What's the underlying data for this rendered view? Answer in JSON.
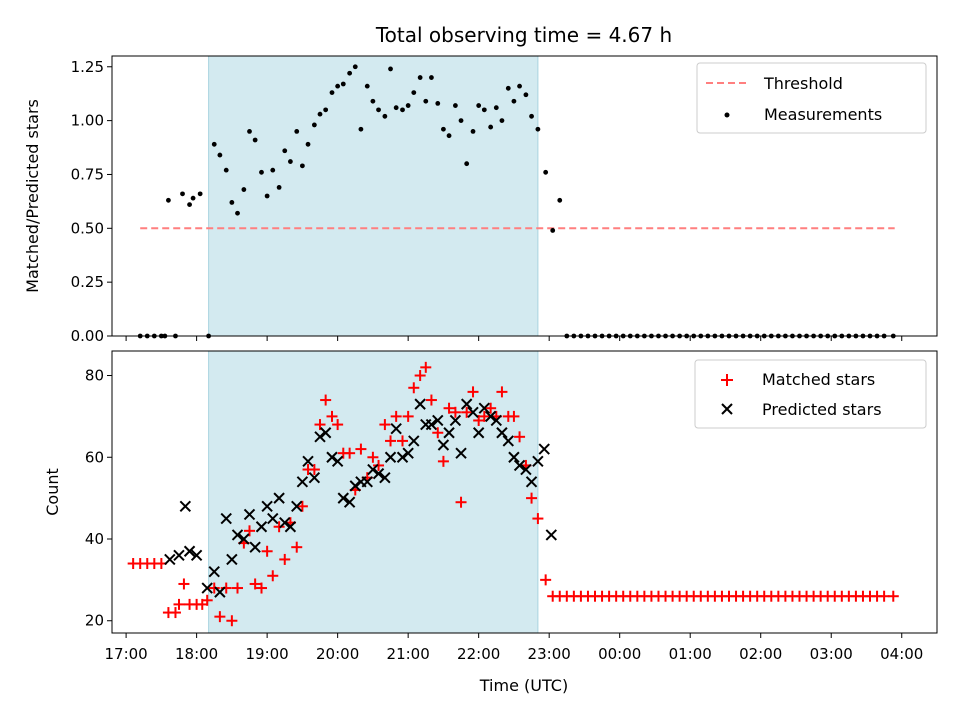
{
  "chart_data": [
    {
      "type": "scatter",
      "title": "Total observing time = 4.67 h",
      "xlabel": "",
      "ylabel": "Matched/Predicted stars",
      "x_unit": "hours since 17:00 UTC (axis shows clock time)",
      "xlim": [
        16.8,
        28.5
      ],
      "ylim": [
        0.0,
        1.3
      ],
      "yticks": [
        0.0,
        0.25,
        0.5,
        0.75,
        1.0,
        1.25
      ],
      "yticklabels": [
        "0.00",
        "0.25",
        "0.50",
        "0.75",
        "1.00",
        "1.25"
      ],
      "shaded_span": [
        18.17,
        22.84
      ],
      "shaded_color": "#d3eaf0",
      "legend": {
        "placement": "upper-right",
        "entries": [
          "Threshold",
          "Measurements"
        ]
      },
      "series": [
        {
          "name": "Threshold",
          "style": "dashed-line",
          "color": "#ff7f7f",
          "x": [
            17.2,
            27.9
          ],
          "y": [
            0.5,
            0.5
          ]
        },
        {
          "name": "Measurements",
          "style": "dot",
          "color": "#000000",
          "x": [
            17.2,
            17.3,
            17.4,
            17.5,
            17.55,
            17.6,
            17.7,
            17.8,
            17.9,
            17.95,
            18.05,
            18.17,
            18.25,
            18.33,
            18.42,
            18.5,
            18.58,
            18.67,
            18.75,
            18.83,
            18.92,
            19.0,
            19.08,
            19.17,
            19.25,
            19.33,
            19.42,
            19.5,
            19.58,
            19.67,
            19.75,
            19.83,
            19.92,
            20.0,
            20.08,
            20.17,
            20.25,
            20.33,
            20.42,
            20.5,
            20.58,
            20.67,
            20.75,
            20.83,
            20.92,
            21.0,
            21.08,
            21.17,
            21.25,
            21.33,
            21.42,
            21.5,
            21.58,
            21.67,
            21.75,
            21.83,
            21.92,
            22.0,
            22.08,
            22.17,
            22.25,
            22.33,
            22.42,
            22.5,
            22.58,
            22.67,
            22.75,
            22.84,
            22.95,
            23.05,
            23.15,
            23.25,
            23.35,
            23.45,
            23.55,
            23.65,
            23.75,
            23.85,
            23.95,
            24.05,
            24.15,
            24.25,
            24.35,
            24.45,
            24.55,
            24.65,
            24.75,
            24.85,
            24.95,
            25.05,
            25.15,
            25.25,
            25.35,
            25.45,
            25.55,
            25.65,
            25.75,
            25.85,
            25.95,
            26.05,
            26.15,
            26.25,
            26.35,
            26.45,
            26.55,
            26.65,
            26.75,
            26.85,
            26.95,
            27.05,
            27.15,
            27.25,
            27.35,
            27.45,
            27.55,
            27.65,
            27.75,
            27.88
          ],
          "y": [
            0.0,
            0.0,
            0.0,
            0.0,
            0.0,
            0.63,
            0.0,
            0.66,
            0.61,
            0.64,
            0.66,
            0.0,
            0.89,
            0.84,
            0.77,
            0.62,
            0.57,
            0.68,
            0.95,
            0.91,
            0.76,
            0.65,
            0.77,
            0.69,
            0.86,
            0.81,
            0.95,
            0.79,
            0.89,
            0.98,
            1.03,
            1.05,
            1.13,
            1.16,
            1.17,
            1.22,
            1.25,
            0.96,
            1.16,
            1.09,
            1.05,
            1.02,
            1.24,
            1.06,
            1.05,
            1.07,
            1.13,
            1.2,
            1.09,
            1.2,
            1.08,
            0.96,
            0.93,
            1.07,
            1.0,
            0.8,
            0.95,
            1.07,
            1.05,
            0.97,
            1.06,
            1.0,
            1.15,
            1.09,
            1.16,
            1.12,
            1.02,
            0.96,
            0.76,
            0.49,
            0.63,
            0.0,
            0.0,
            0.0,
            0.0,
            0.0,
            0.0,
            0.0,
            0.0,
            0.0,
            0.0,
            0.0,
            0.0,
            0.0,
            0.0,
            0.0,
            0.0,
            0.0,
            0.0,
            0.0,
            0.0,
            0.0,
            0.0,
            0.0,
            0.0,
            0.0,
            0.0,
            0.0,
            0.0,
            0.0,
            0.0,
            0.0,
            0.0,
            0.0,
            0.0,
            0.0,
            0.0,
            0.0,
            0.0,
            0.0,
            0.0,
            0.0,
            0.0,
            0.0,
            0.0,
            0.0,
            0.0,
            0.0
          ]
        }
      ]
    },
    {
      "type": "scatter",
      "title": "",
      "xlabel": "Time (UTC)",
      "ylabel": "Count",
      "x_unit": "hours since 17:00 UTC (axis shows clock time)",
      "xlim": [
        16.8,
        28.5
      ],
      "ylim": [
        17,
        86
      ],
      "xticks": [
        17,
        18,
        19,
        20,
        21,
        22,
        23,
        24,
        25,
        26,
        27,
        28
      ],
      "xticklabels": [
        "17:00",
        "18:00",
        "19:00",
        "20:00",
        "21:00",
        "22:00",
        "23:00",
        "00:00",
        "01:00",
        "02:00",
        "03:00",
        "04:00"
      ],
      "yticks": [
        20,
        40,
        60,
        80
      ],
      "yticklabels": [
        "20",
        "40",
        "60",
        "80"
      ],
      "shaded_span": [
        18.17,
        22.84
      ],
      "shaded_color": "#d3eaf0",
      "legend": {
        "placement": "upper-right",
        "entries": [
          "Matched stars",
          "Predicted stars"
        ]
      },
      "series": [
        {
          "name": "Matched stars",
          "style": "plus",
          "color": "#ff0000",
          "x": [
            17.1,
            17.2,
            17.3,
            17.4,
            17.5,
            17.6,
            17.7,
            17.75,
            17.82,
            17.9,
            18.0,
            18.08,
            18.15,
            18.25,
            18.33,
            18.42,
            18.5,
            18.58,
            18.67,
            18.75,
            18.83,
            18.92,
            19.0,
            19.08,
            19.17,
            19.25,
            19.33,
            19.42,
            19.5,
            19.58,
            19.67,
            19.75,
            19.83,
            19.92,
            20.0,
            20.08,
            20.17,
            20.25,
            20.33,
            20.42,
            20.5,
            20.58,
            20.67,
            20.75,
            20.83,
            20.92,
            21.0,
            21.08,
            21.17,
            21.25,
            21.33,
            21.42,
            21.5,
            21.58,
            21.67,
            21.75,
            21.83,
            21.92,
            22.0,
            22.08,
            22.17,
            22.25,
            22.33,
            22.42,
            22.5,
            22.58,
            22.67,
            22.75,
            22.84,
            22.95,
            23.05,
            23.15,
            23.25,
            23.35,
            23.45,
            23.55,
            23.65,
            23.75,
            23.85,
            23.95,
            24.05,
            24.15,
            24.25,
            24.35,
            24.45,
            24.55,
            24.65,
            24.75,
            24.85,
            24.95,
            25.05,
            25.15,
            25.25,
            25.35,
            25.45,
            25.55,
            25.65,
            25.75,
            25.85,
            25.95,
            26.05,
            26.15,
            26.25,
            26.35,
            26.45,
            26.55,
            26.65,
            26.75,
            26.85,
            26.95,
            27.05,
            27.15,
            27.25,
            27.35,
            27.45,
            27.55,
            27.65,
            27.75,
            27.88
          ],
          "y": [
            34,
            34,
            34,
            34,
            34,
            22,
            22,
            24,
            29,
            24,
            24,
            24,
            25,
            28,
            21,
            28,
            20,
            28,
            39,
            42,
            29,
            28,
            37,
            31,
            43,
            35,
            44,
            38,
            48,
            57,
            57,
            68,
            74,
            70,
            68,
            61,
            61,
            52,
            62,
            55,
            60,
            58,
            68,
            64,
            70,
            64,
            70,
            77,
            80,
            82,
            74,
            66,
            59,
            72,
            71,
            49,
            71,
            76,
            69,
            70,
            72,
            70,
            76,
            70,
            70,
            65,
            58,
            50,
            45,
            30,
            26,
            26,
            26,
            26,
            26,
            26,
            26,
            26,
            26,
            26,
            26,
            26,
            26,
            26,
            26,
            26,
            26,
            26,
            26,
            26,
            26,
            26,
            26,
            26,
            26,
            26,
            26,
            26,
            26,
            26,
            26,
            26,
            26,
            26,
            26,
            26,
            26,
            26,
            26,
            26,
            26,
            26,
            26,
            26,
            26,
            26,
            26,
            26,
            26
          ]
        },
        {
          "name": "Predicted stars",
          "style": "x",
          "color": "#000000",
          "x": [
            17.62,
            17.75,
            17.84,
            17.9,
            18.0,
            18.15,
            18.25,
            18.33,
            18.42,
            18.5,
            18.58,
            18.67,
            18.75,
            18.83,
            18.92,
            19.0,
            19.08,
            19.17,
            19.25,
            19.33,
            19.42,
            19.5,
            19.58,
            19.67,
            19.75,
            19.83,
            19.92,
            20.0,
            20.08,
            20.17,
            20.25,
            20.33,
            20.42,
            20.5,
            20.58,
            20.67,
            20.75,
            20.83,
            20.92,
            21.0,
            21.08,
            21.17,
            21.25,
            21.33,
            21.42,
            21.5,
            21.58,
            21.67,
            21.75,
            21.83,
            21.92,
            22.0,
            22.08,
            22.17,
            22.25,
            22.33,
            22.42,
            22.5,
            22.58,
            22.67,
            22.75,
            22.84,
            22.93,
            23.03
          ],
          "y": [
            35,
            36,
            48,
            37,
            36,
            28,
            32,
            27,
            45,
            35,
            41,
            40,
            46,
            38,
            43,
            48,
            45,
            50,
            44,
            43,
            48,
            54,
            59,
            55,
            65,
            66,
            60,
            59,
            50,
            49,
            53,
            54,
            54,
            57,
            56,
            55,
            60,
            67,
            60,
            61,
            64,
            73,
            68,
            68,
            69,
            63,
            66,
            69,
            61,
            73,
            71,
            66,
            72,
            70,
            69,
            66,
            64,
            60,
            58,
            57,
            54,
            59,
            62,
            41
          ]
        }
      ]
    }
  ]
}
